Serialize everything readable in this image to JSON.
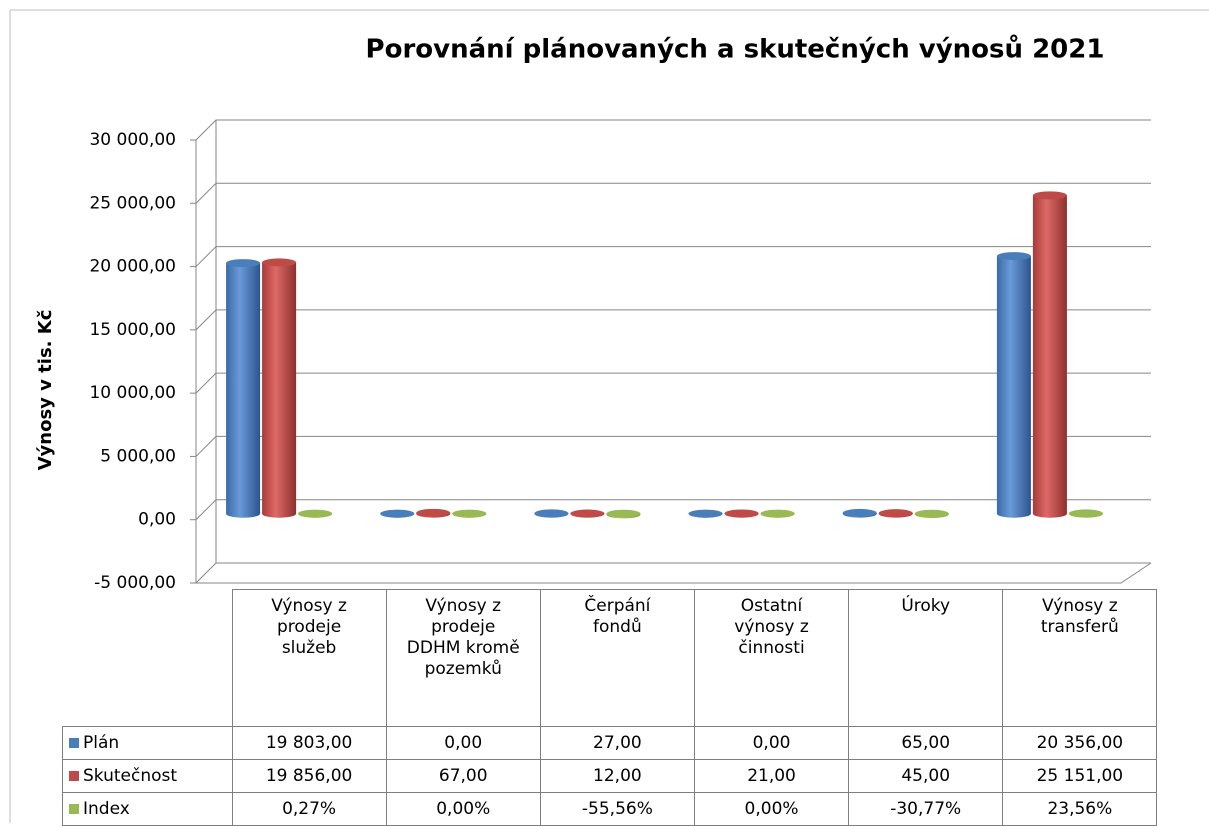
{
  "chart_data": {
    "type": "bar",
    "title": "Porovnání plánovaných a skutečných výnosů 2021",
    "y_label": "Výnosy v tis. Kč",
    "categories": [
      "Výnosy z prodeje služeb",
      "Výnosy z prodeje DDHM kromě pozemků",
      "Čerpání fondů",
      "Ostatní výnosy z činnosti",
      "Úroky",
      "Výnosy z transferů"
    ],
    "series": [
      {
        "name": "Plán",
        "color": "#4a7ebb",
        "values": [
          19803,
          0,
          27,
          0,
          65,
          20356
        ],
        "value_labels": [
          "19 803,00",
          "0,00",
          "27,00",
          "0,00",
          "65,00",
          "20 356,00"
        ]
      },
      {
        "name": "Skutečnost",
        "color": "#be4b48",
        "values": [
          19856,
          67,
          12,
          21,
          45,
          25151
        ],
        "value_labels": [
          "19 856,00",
          "67,00",
          "12,00",
          "21,00",
          "45,00",
          "25 151,00"
        ]
      },
      {
        "name": "Index",
        "color": "#98b954",
        "values": [
          0.27,
          0,
          -55.56,
          0,
          -30.77,
          23.56
        ],
        "value_labels": [
          "0,27%",
          "0,00%",
          "-55,56%",
          "0,00%",
          "-30,77%",
          "23,56%"
        ]
      }
    ],
    "ylim": [
      -5000,
      30000
    ],
    "yticks": [
      {
        "value": -5000,
        "label": "-5 000,00"
      },
      {
        "value": 0,
        "label": "0,00"
      },
      {
        "value": 5000,
        "label": "5 000,00"
      },
      {
        "value": 10000,
        "label": "10 000,00"
      },
      {
        "value": 15000,
        "label": "15 000,00"
      },
      {
        "value": 20000,
        "label": "20 000,00"
      },
      {
        "value": 25000,
        "label": "25 000,00"
      },
      {
        "value": 30000,
        "label": "30 000,00"
      }
    ],
    "grid": true
  }
}
